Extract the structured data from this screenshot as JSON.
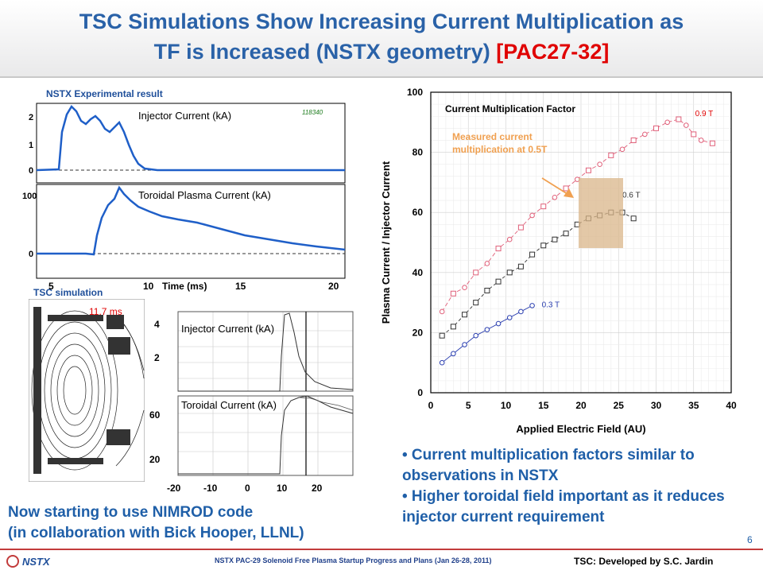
{
  "header": {
    "title_line1": "TSC Simulations Show Increasing Current Multiplication as",
    "title_line2_main": "TF is Increased (NSTX geometry) ",
    "title_line2_ref": "[PAC27-32]"
  },
  "labels": {
    "experimental": "NSTX Experimental result",
    "tsc_sim": "TSC simulation"
  },
  "exp_panel": {
    "shot": "118340",
    "top_title": "Injector Current (kA)",
    "bottom_title": "Toroidal Plasma Current (kA)",
    "xlabel": "Time (ms)",
    "top_yticks": [
      "2",
      "1",
      "0"
    ],
    "bottom_yticks": [
      "100",
      "0"
    ],
    "xticks": [
      "5",
      "10",
      "15",
      "20"
    ]
  },
  "sim_panel": {
    "time_label": "11.7 ms",
    "top_title": "Injector Current (kA)",
    "bottom_title": "Toroidal Current (kA)",
    "top_yticks": [
      "4",
      "2"
    ],
    "bottom_yticks": [
      "60",
      "20"
    ],
    "xticks": [
      "-20",
      "-10",
      "0",
      "10",
      "20"
    ]
  },
  "chart_data": {
    "type": "scatter",
    "title": "Current Multiplication Factor",
    "xlabel": "Applied Electric Field (AU)",
    "ylabel": "Plasma Current / Injector Current",
    "xlim": [
      0,
      40
    ],
    "ylim": [
      0,
      100
    ],
    "xticks": [
      0,
      5,
      10,
      15,
      20,
      25,
      30,
      35,
      40
    ],
    "yticks": [
      0,
      20,
      40,
      60,
      80,
      100
    ],
    "grid": true,
    "annotation": "Measured current multiplication at 0.5T",
    "annotation_line1": "Measured current",
    "annotation_line2": "multiplication at 0.5T",
    "series": [
      {
        "name": "0.9 T",
        "color": "#e0607a",
        "marker": "mixed",
        "x": [
          1.5,
          3,
          4.5,
          6,
          7.5,
          9,
          10.5,
          12,
          13.5,
          15,
          16.5,
          18,
          19.5,
          21,
          22.5,
          24,
          25.5,
          27,
          28.5,
          30,
          31.5,
          33,
          34,
          35,
          36,
          37.5
        ],
        "y": [
          27,
          33,
          35,
          40,
          43,
          48,
          51,
          55,
          59,
          62,
          65,
          68,
          71,
          74,
          76,
          79,
          81,
          84,
          86,
          88,
          90,
          91,
          89,
          86,
          84,
          83
        ]
      },
      {
        "name": "0.6 T",
        "color": "#333333",
        "marker": "square",
        "x": [
          1.5,
          3,
          4.5,
          6,
          7.5,
          9,
          10.5,
          12,
          13.5,
          15,
          16.5,
          18,
          19.5,
          21,
          22.5,
          24,
          25.5,
          27
        ],
        "y": [
          19,
          22,
          26,
          30,
          34,
          37,
          40,
          42,
          46,
          49,
          51,
          53,
          56,
          58,
          59,
          60,
          60,
          58
        ]
      },
      {
        "name": "0.3 T",
        "color": "#2b3fb0",
        "marker": "circle",
        "x": [
          1.5,
          3,
          4.5,
          6,
          7.5,
          9,
          10.5,
          12,
          13.5
        ],
        "y": [
          10,
          13,
          16,
          19,
          21,
          23,
          25,
          27,
          29
        ]
      }
    ]
  },
  "bullets": [
    "• Current multiplication factors similar to observations in NSTX",
    "• Higher toroidal field important as it reduces injector current requirement"
  ],
  "nimrod": {
    "line1": "Now starting to use NIMROD code",
    "line2": "(in collaboration with Bick Hooper, LLNL)"
  },
  "footer": {
    "logo": "NSTX",
    "mid": "NSTX PAC-29  Solenoid Free Plasma Startup Progress and Plans (Jan 26-28, 2011)",
    "right": "TSC: Developed by S.C. Jardin",
    "page": "6"
  }
}
